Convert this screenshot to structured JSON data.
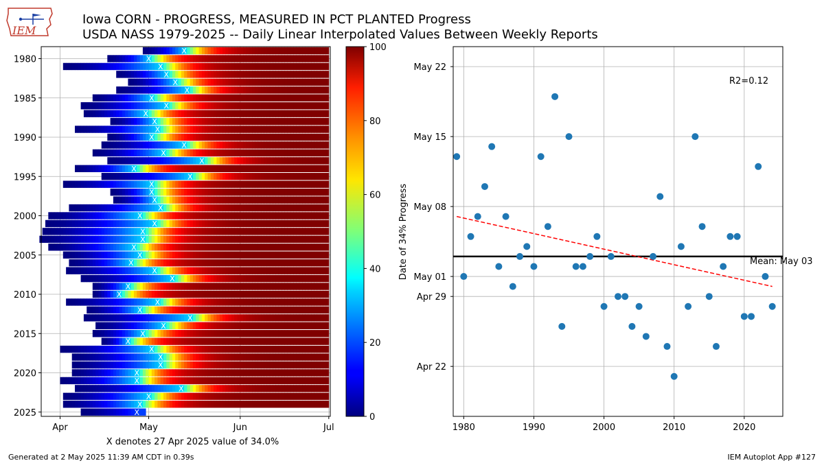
{
  "header": {
    "title_line1": "Iowa CORN - PROGRESS, MEASURED IN PCT PLANTED Progress",
    "title_line2": "USDA NASS 1979-2025 -- Daily Linear Interpolated Values Between Weekly Reports",
    "logo_text": "IEM"
  },
  "footer": {
    "generated": "Generated at 2 May 2025 11:39 AM CDT in 0.39s",
    "app": "IEM Autoplot App #127"
  },
  "chart_data": [
    {
      "type": "heatmap",
      "xlabel": "X denotes 27 Apr 2025 value of 34.0%",
      "ylabel": "",
      "x_ticks": [
        "Apr",
        "May",
        "Jun",
        "Jul"
      ],
      "y_ticks": [
        "1980",
        "1985",
        "1990",
        "1995",
        "2000",
        "2005",
        "2010",
        "2015",
        "2020",
        "2025"
      ],
      "ylim": [
        1979,
        2025
      ],
      "colorbar": {
        "min": 0,
        "max": 100,
        "ticks": [
          "0",
          "20",
          "40",
          "60",
          "80",
          "100"
        ]
      },
      "marker": "X",
      "rows": [
        {
          "year": 1979,
          "start": "Apr 29",
          "x_date": "May 13"
        },
        {
          "year": 1980,
          "start": "Apr 17",
          "x_date": "May 1"
        },
        {
          "year": 1981,
          "start": "Apr 2",
          "x_date": "May 5"
        },
        {
          "year": 1982,
          "start": "Apr 20",
          "x_date": "May 7"
        },
        {
          "year": 1983,
          "start": "Apr 24",
          "x_date": "May 10"
        },
        {
          "year": 1984,
          "start": "Apr 20",
          "x_date": "May 14"
        },
        {
          "year": 1985,
          "start": "Apr 12",
          "x_date": "May 2"
        },
        {
          "year": 1986,
          "start": "Apr 8",
          "x_date": "May 7"
        },
        {
          "year": 1987,
          "start": "Apr 9",
          "x_date": "Apr 30"
        },
        {
          "year": 1988,
          "start": "Apr 18",
          "x_date": "May 3"
        },
        {
          "year": 1989,
          "start": "Apr 6",
          "x_date": "May 4"
        },
        {
          "year": 1990,
          "start": "Apr 17",
          "x_date": "May 2"
        },
        {
          "year": 1991,
          "start": "Apr 15",
          "x_date": "May 13"
        },
        {
          "year": 1992,
          "start": "Apr 12",
          "x_date": "May 6"
        },
        {
          "year": 1993,
          "start": "Apr 17",
          "x_date": "May 19"
        },
        {
          "year": 1994,
          "start": "Apr 6",
          "x_date": "Apr 26"
        },
        {
          "year": 1995,
          "start": "Apr 15",
          "x_date": "May 15"
        },
        {
          "year": 1996,
          "start": "Apr 2",
          "x_date": "May 2"
        },
        {
          "year": 1997,
          "start": "Apr 18",
          "x_date": "May 2"
        },
        {
          "year": 1998,
          "start": "Apr 19",
          "x_date": "May 3"
        },
        {
          "year": 1999,
          "start": "Apr 4",
          "x_date": "May 5"
        },
        {
          "year": 2000,
          "start": "Mar 28",
          "x_date": "Apr 28"
        },
        {
          "year": 2001,
          "start": "Mar 27",
          "x_date": "May 3"
        },
        {
          "year": 2002,
          "start": "Mar 26",
          "x_date": "Apr 29"
        },
        {
          "year": 2003,
          "start": "Mar 25",
          "x_date": "Apr 29"
        },
        {
          "year": 2004,
          "start": "Mar 28",
          "x_date": "Apr 26"
        },
        {
          "year": 2005,
          "start": "Apr 2",
          "x_date": "Apr 28"
        },
        {
          "year": 2006,
          "start": "Apr 4",
          "x_date": "Apr 25"
        },
        {
          "year": 2007,
          "start": "Apr 3",
          "x_date": "May 3"
        },
        {
          "year": 2008,
          "start": "Apr 8",
          "x_date": "May 9"
        },
        {
          "year": 2009,
          "start": "Apr 12",
          "x_date": "Apr 24"
        },
        {
          "year": 2010,
          "start": "Apr 12",
          "x_date": "Apr 21"
        },
        {
          "year": 2011,
          "start": "Apr 3",
          "x_date": "May 4"
        },
        {
          "year": 2012,
          "start": "Apr 10",
          "x_date": "Apr 28"
        },
        {
          "year": 2013,
          "start": "Apr 9",
          "x_date": "May 15"
        },
        {
          "year": 2014,
          "start": "Apr 13",
          "x_date": "May 6"
        },
        {
          "year": 2015,
          "start": "Apr 12",
          "x_date": "Apr 29"
        },
        {
          "year": 2016,
          "start": "Apr 15",
          "x_date": "Apr 24"
        },
        {
          "year": 2017,
          "start": "Apr 1",
          "x_date": "May 2"
        },
        {
          "year": 2018,
          "start": "Apr 5",
          "x_date": "May 5"
        },
        {
          "year": 2019,
          "start": "Apr 5",
          "x_date": "May 5"
        },
        {
          "year": 2020,
          "start": "Apr 5",
          "x_date": "Apr 27"
        },
        {
          "year": 2021,
          "start": "Apr 1",
          "x_date": "Apr 27"
        },
        {
          "year": 2022,
          "start": "Apr 6",
          "x_date": "May 12"
        },
        {
          "year": 2023,
          "start": "Apr 2",
          "x_date": "May 1"
        },
        {
          "year": 2024,
          "start": "Apr 2",
          "x_date": "Apr 28"
        },
        {
          "year": 2025,
          "start": "Apr 8",
          "x_date": "Apr 27"
        }
      ]
    },
    {
      "type": "scatter",
      "xlabel": "",
      "ylabel": "Date of 34% Progress",
      "xlim": [
        1978.5,
        2025.5
      ],
      "ylim": [
        "Apr 17",
        "May 24"
      ],
      "x_ticks": [
        "1980",
        "1990",
        "2000",
        "2010",
        "2020"
      ],
      "y_ticks": [
        "Apr 22",
        "Apr 29",
        "May 01",
        "May 08",
        "May 15",
        "May 22"
      ],
      "grid": true,
      "points": [
        {
          "x": 1979,
          "y": "May 13"
        },
        {
          "x": 1980,
          "y": "May 1"
        },
        {
          "x": 1981,
          "y": "May 5"
        },
        {
          "x": 1982,
          "y": "May 7"
        },
        {
          "x": 1983,
          "y": "May 10"
        },
        {
          "x": 1984,
          "y": "May 14"
        },
        {
          "x": 1985,
          "y": "May 2"
        },
        {
          "x": 1986,
          "y": "May 7"
        },
        {
          "x": 1987,
          "y": "Apr 30"
        },
        {
          "x": 1988,
          "y": "May 3"
        },
        {
          "x": 1989,
          "y": "May 4"
        },
        {
          "x": 1990,
          "y": "May 2"
        },
        {
          "x": 1991,
          "y": "May 13"
        },
        {
          "x": 1992,
          "y": "May 6"
        },
        {
          "x": 1993,
          "y": "May 19"
        },
        {
          "x": 1994,
          "y": "Apr 26"
        },
        {
          "x": 1995,
          "y": "May 15"
        },
        {
          "x": 1996,
          "y": "May 2"
        },
        {
          "x": 1997,
          "y": "May 2"
        },
        {
          "x": 1998,
          "y": "May 3"
        },
        {
          "x": 1999,
          "y": "May 5"
        },
        {
          "x": 2000,
          "y": "Apr 28"
        },
        {
          "x": 2001,
          "y": "May 3"
        },
        {
          "x": 2002,
          "y": "Apr 29"
        },
        {
          "x": 2003,
          "y": "Apr 29"
        },
        {
          "x": 2004,
          "y": "Apr 26"
        },
        {
          "x": 2005,
          "y": "Apr 28"
        },
        {
          "x": 2006,
          "y": "Apr 25"
        },
        {
          "x": 2007,
          "y": "May 3"
        },
        {
          "x": 2008,
          "y": "May 9"
        },
        {
          "x": 2009,
          "y": "Apr 24"
        },
        {
          "x": 2010,
          "y": "Apr 21"
        },
        {
          "x": 2011,
          "y": "May 4"
        },
        {
          "x": 2012,
          "y": "Apr 28"
        },
        {
          "x": 2013,
          "y": "May 15"
        },
        {
          "x": 2014,
          "y": "May 6"
        },
        {
          "x": 2015,
          "y": "Apr 29"
        },
        {
          "x": 2016,
          "y": "Apr 24"
        },
        {
          "x": 2017,
          "y": "May 2"
        },
        {
          "x": 2018,
          "y": "May 5"
        },
        {
          "x": 2019,
          "y": "May 5"
        },
        {
          "x": 2020,
          "y": "Apr 27"
        },
        {
          "x": 2021,
          "y": "Apr 27"
        },
        {
          "x": 2022,
          "y": "May 12"
        },
        {
          "x": 2023,
          "y": "May 1"
        },
        {
          "x": 2024,
          "y": "Apr 28"
        }
      ],
      "mean": {
        "label": "Mean: May 03",
        "y": "May 3"
      },
      "trend": {
        "start": {
          "x": 1979,
          "y": "May 7"
        },
        "end": {
          "x": 2024,
          "y": "Apr 30"
        }
      },
      "annotation": "R2=0.12"
    }
  ]
}
